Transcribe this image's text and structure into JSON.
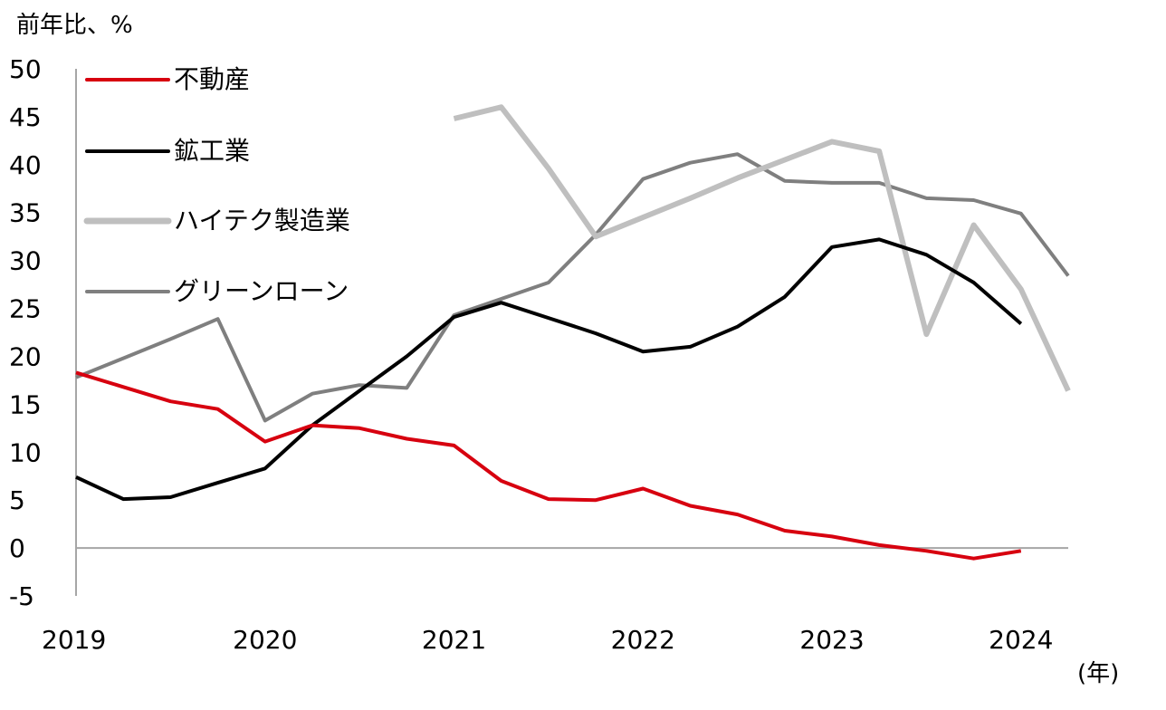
{
  "chart_data": {
    "type": "line",
    "ylabel": "前年比、%",
    "xlabel": "(年)",
    "ylim": [
      -5,
      50
    ],
    "yticks": [
      50,
      45,
      40,
      35,
      30,
      25,
      20,
      15,
      10,
      5,
      0,
      -5
    ],
    "yticks_labels": [
      "50",
      "45",
      "40",
      "35",
      "30",
      "25",
      "20",
      "15",
      "10",
      "5",
      "0",
      "-5"
    ],
    "xlim": [
      2019.0,
      2024.25
    ],
    "xticks": [
      2019,
      2020,
      2021,
      2022,
      2023,
      2024
    ],
    "xticks_labels": [
      "2019",
      "2020",
      "2021",
      "2022",
      "2023",
      "2024"
    ],
    "grid": false,
    "legend_position": "top-left",
    "series": [
      {
        "name": "不動産",
        "color": "#d7000f",
        "x": [
          2019.0,
          2019.25,
          2019.5,
          2019.75,
          2020.0,
          2020.25,
          2020.5,
          2020.75,
          2021.0,
          2021.25,
          2021.5,
          2021.75,
          2022.0,
          2022.25,
          2022.5,
          2022.75,
          2023.0,
          2023.25,
          2023.5,
          2023.75,
          2024.0
        ],
        "values": [
          18.3,
          16.8,
          15.3,
          14.5,
          11.1,
          12.8,
          12.5,
          11.4,
          10.7,
          7.0,
          5.1,
          5.0,
          6.2,
          4.4,
          3.5,
          1.8,
          1.2,
          0.3,
          -0.3,
          -1.1,
          -0.3
        ]
      },
      {
        "name": "鉱工業",
        "color": "#000000",
        "x": [
          2019.0,
          2019.25,
          2019.5,
          2019.75,
          2020.0,
          2020.25,
          2020.5,
          2020.75,
          2021.0,
          2021.25,
          2021.5,
          2021.75,
          2022.0,
          2022.25,
          2022.5,
          2022.75,
          2023.0,
          2023.25,
          2023.5,
          2023.75,
          2024.0
        ],
        "values": [
          7.4,
          5.1,
          5.3,
          6.8,
          8.3,
          12.8,
          16.4,
          20.0,
          24.1,
          25.6,
          24.0,
          22.4,
          20.5,
          21.0,
          23.1,
          26.2,
          31.4,
          32.2,
          30.6,
          27.7,
          23.4
        ]
      },
      {
        "name": "ハイテク製造業",
        "color": "#bfbfbf",
        "x": [
          2021.0,
          2021.25,
          2021.5,
          2021.75,
          2022.0,
          2022.25,
          2022.5,
          2022.75,
          2023.0,
          2023.25,
          2023.5,
          2023.75,
          2024.0,
          2024.25
        ],
        "values": [
          44.8,
          46.0,
          39.6,
          32.5,
          34.5,
          36.5,
          38.6,
          40.5,
          42.4,
          41.4,
          22.3,
          33.7,
          27.0,
          16.4
        ]
      },
      {
        "name": "グリーンローン",
        "color": "#7f7f7f",
        "x": [
          2019.0,
          2019.25,
          2019.5,
          2019.75,
          2020.0,
          2020.25,
          2020.5,
          2020.75,
          2021.0,
          2021.25,
          2021.5,
          2021.75,
          2022.0,
          2022.25,
          2022.5,
          2022.75,
          2023.0,
          2023.25,
          2023.5,
          2023.75,
          2024.0,
          2024.25
        ],
        "values": [
          17.8,
          19.8,
          21.8,
          23.9,
          13.3,
          16.1,
          17.0,
          16.7,
          24.3,
          26.0,
          27.7,
          32.7,
          38.5,
          40.2,
          41.1,
          38.3,
          38.1,
          38.1,
          36.5,
          36.3,
          34.9,
          28.4
        ]
      }
    ]
  }
}
